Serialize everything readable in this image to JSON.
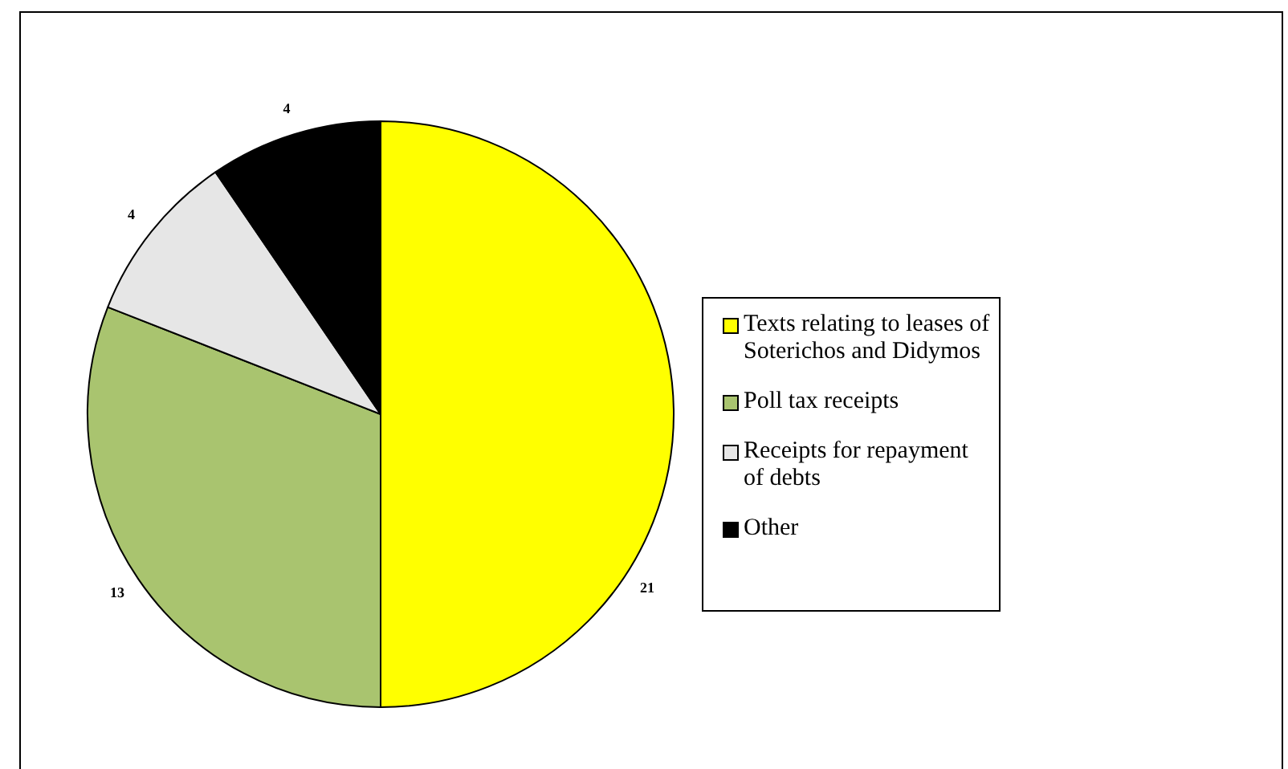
{
  "chart_data": {
    "type": "pie",
    "categories": [
      "Texts relating to leases of Soterichos and Didymos",
      "Poll tax receipts",
      "Receipts for repayment of debts",
      "Other"
    ],
    "values": [
      21,
      13,
      4,
      4
    ],
    "colors": [
      "#ffff00",
      "#a9c46f",
      "#e6e6e6",
      "#000000"
    ],
    "data_labels": true,
    "legend": "right"
  }
}
